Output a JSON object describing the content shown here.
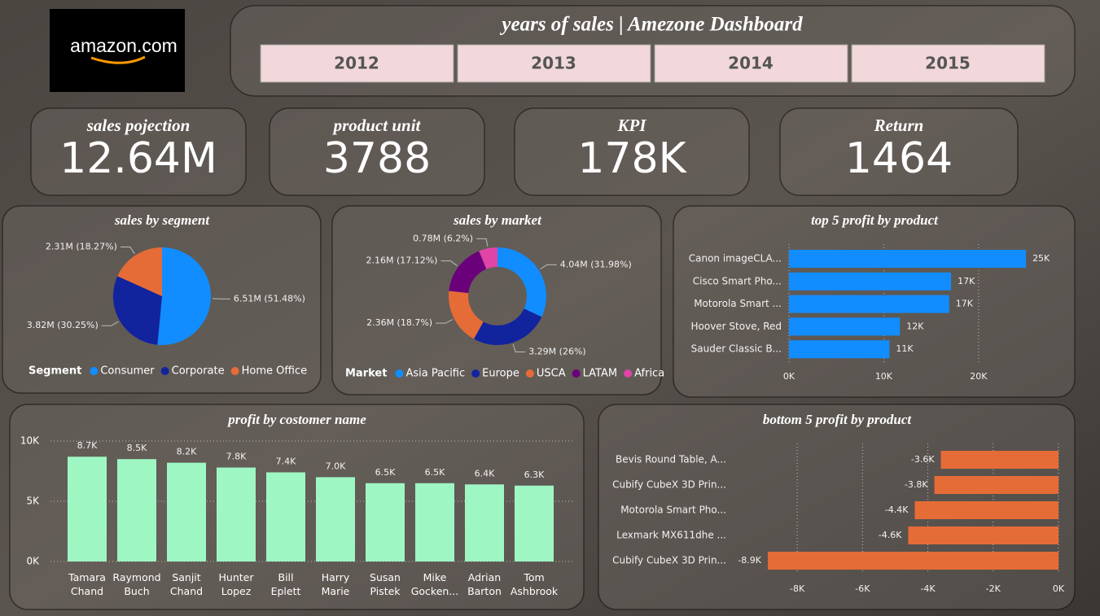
{
  "header": {
    "logo": "amazon.com",
    "title": "years of sales | Amezone Dashboard",
    "years": [
      "2012",
      "2013",
      "2014",
      "2015"
    ]
  },
  "kpis": [
    {
      "label": "sales pojection",
      "value": "12.64M"
    },
    {
      "label": "product unit",
      "value": "3788"
    },
    {
      "label": "KPI",
      "value": "178K"
    },
    {
      "label": "Return",
      "value": "1464"
    }
  ],
  "chart_data": [
    {
      "type": "pie",
      "title": "sales by segment",
      "legend_title": "Segment",
      "categories": [
        "Consumer",
        "Corporate",
        "Home Office"
      ],
      "values": [
        6.51,
        3.82,
        2.31
      ],
      "value_labels": [
        "6.51M (51.48%)",
        "3.82M (30.25%)",
        "2.31M (18.27%)"
      ],
      "colors": [
        "#118dff",
        "#12239e",
        "#e66c37"
      ]
    },
    {
      "type": "donut",
      "title": "sales by market",
      "legend_title": "Market",
      "categories": [
        "Asia Pacific",
        "Europe",
        "USCA",
        "LATAM",
        "Africa"
      ],
      "values": [
        4.04,
        3.29,
        2.36,
        2.16,
        0.78
      ],
      "value_labels": [
        "4.04M (31.98%)",
        "3.29M (26%)",
        "2.36M (18.7%)",
        "2.16M (17.12%)",
        "0.78M (6.2%)"
      ],
      "colors": [
        "#118dff",
        "#12239e",
        "#e66c37",
        "#6b007b",
        "#e044a7"
      ]
    },
    {
      "type": "hbar",
      "title": "top 5 profit by product",
      "categories": [
        "Canon imageCLA...",
        "Cisco Smart Pho...",
        "Motorola Smart ...",
        "Hoover Stove, Red",
        "Sauder Classic B..."
      ],
      "values": [
        25000,
        17100,
        16900,
        11700,
        10600
      ],
      "value_labels": [
        "25K",
        "17K",
        "17K",
        "12K",
        "11K"
      ],
      "color": "#118dff",
      "xlim": [
        0,
        28000
      ],
      "xticks": [
        {
          "value": 0,
          "label": "0K"
        },
        {
          "value": 10000,
          "label": "10K"
        },
        {
          "value": 20000,
          "label": "20K"
        }
      ],
      "grid": true
    },
    {
      "type": "bar",
      "title": "profit by costomer name",
      "categories": [
        "Tamara Chand",
        "Raymond Buch",
        "Sanjit Chand",
        "Hunter Lopez",
        "Bill Eplett",
        "Harry Marie",
        "Susan Pistek",
        "Mike Gocken...",
        "Adrian Barton",
        "Tom Ashbrook"
      ],
      "values": [
        8700,
        8500,
        8200,
        7800,
        7400,
        7000,
        6500,
        6500,
        6400,
        6300
      ],
      "value_labels": [
        "8.7K",
        "8.5K",
        "8.2K",
        "7.8K",
        "7.4K",
        "7.0K",
        "6.5K",
        "6.5K",
        "6.4K",
        "6.3K"
      ],
      "color": "#9ef7c3",
      "ylim": [
        0,
        10000
      ],
      "yticks": [
        {
          "value": 0,
          "label": "0K"
        },
        {
          "value": 5000,
          "label": "5K"
        },
        {
          "value": 10000,
          "label": "10K"
        }
      ],
      "grid": true
    },
    {
      "type": "hbar",
      "title": "bottom 5 profit by product",
      "categories": [
        "Bevis Round Table, A...",
        "Cubify CubeX 3D Prin...",
        "Motorola Smart Pho...",
        "Lexmark MX611dhe ...",
        "Cubify CubeX 3D Prin..."
      ],
      "values": [
        -3600,
        -3800,
        -4400,
        -4600,
        -8900
      ],
      "value_labels": [
        "-3.6K",
        "-3.8K",
        "-4.4K",
        "-4.6K",
        "-8.9K"
      ],
      "color": "#e66c37",
      "xlim": [
        -9000,
        0
      ],
      "xticks": [
        {
          "value": -8000,
          "label": "-8K"
        },
        {
          "value": -6000,
          "label": "-6K"
        },
        {
          "value": -4000,
          "label": "-4K"
        },
        {
          "value": -2000,
          "label": "-2K"
        },
        {
          "value": 0,
          "label": "0K"
        }
      ],
      "grid": true
    }
  ]
}
